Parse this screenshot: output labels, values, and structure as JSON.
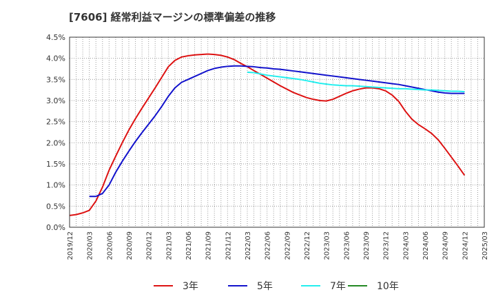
{
  "title": "[7606]  経常利益マージンの標準偏差の推移",
  "chart_data": {
    "type": "line",
    "title": "[7606]  経常利益マージンの標準偏差の推移",
    "y_ticks": [
      "0.0%",
      "0.5%",
      "1.0%",
      "1.5%",
      "2.0%",
      "2.5%",
      "3.0%",
      "3.5%",
      "4.0%",
      "4.5%"
    ],
    "ylim": [
      0,
      4.5
    ],
    "x_ticks": [
      "2019/12",
      "2020/03",
      "2020/06",
      "2020/09",
      "2020/12",
      "2021/03",
      "2021/06",
      "2021/09",
      "2021/12",
      "2022/03",
      "2022/06",
      "2022/09",
      "2022/12",
      "2023/03",
      "2023/06",
      "2023/09",
      "2023/12",
      "2024/03",
      "2024/06",
      "2024/09",
      "2024/12",
      "2025/03"
    ],
    "grid": true,
    "legend_position": "bottom",
    "series": [
      {
        "name": "3年",
        "color": "#dd1111",
        "points": [
          [
            "2019/12",
            0.28
          ],
          [
            "2020/01",
            0.3
          ],
          [
            "2020/02",
            0.34
          ],
          [
            "2020/03",
            0.4
          ],
          [
            "2020/04",
            0.62
          ],
          [
            "2020/05",
            0.95
          ],
          [
            "2020/06",
            1.35
          ],
          [
            "2020/07",
            1.68
          ],
          [
            "2020/08",
            2.0
          ],
          [
            "2020/09",
            2.3
          ],
          [
            "2020/10",
            2.57
          ],
          [
            "2020/11",
            2.82
          ],
          [
            "2020/12",
            3.06
          ],
          [
            "2021/01",
            3.3
          ],
          [
            "2021/02",
            3.55
          ],
          [
            "2021/03",
            3.8
          ],
          [
            "2021/04",
            3.95
          ],
          [
            "2021/05",
            4.03
          ],
          [
            "2021/06",
            4.06
          ],
          [
            "2021/07",
            4.08
          ],
          [
            "2021/08",
            4.09
          ],
          [
            "2021/09",
            4.1
          ],
          [
            "2021/10",
            4.09
          ],
          [
            "2021/11",
            4.07
          ],
          [
            "2021/12",
            4.03
          ],
          [
            "2022/01",
            3.97
          ],
          [
            "2022/02",
            3.88
          ],
          [
            "2022/03",
            3.8
          ],
          [
            "2022/04",
            3.71
          ],
          [
            "2022/05",
            3.62
          ],
          [
            "2022/06",
            3.53
          ],
          [
            "2022/07",
            3.44
          ],
          [
            "2022/08",
            3.35
          ],
          [
            "2022/09",
            3.27
          ],
          [
            "2022/10",
            3.19
          ],
          [
            "2022/11",
            3.13
          ],
          [
            "2022/12",
            3.07
          ],
          [
            "2023/01",
            3.03
          ],
          [
            "2023/02",
            3.0
          ],
          [
            "2023/03",
            2.99
          ],
          [
            "2023/04",
            3.03
          ],
          [
            "2023/05",
            3.1
          ],
          [
            "2023/06",
            3.17
          ],
          [
            "2023/07",
            3.23
          ],
          [
            "2023/08",
            3.27
          ],
          [
            "2023/09",
            3.3
          ],
          [
            "2023/10",
            3.3
          ],
          [
            "2023/11",
            3.28
          ],
          [
            "2023/12",
            3.23
          ],
          [
            "2024/01",
            3.13
          ],
          [
            "2024/02",
            2.98
          ],
          [
            "2024/03",
            2.75
          ],
          [
            "2024/04",
            2.56
          ],
          [
            "2024/05",
            2.43
          ],
          [
            "2024/06",
            2.33
          ],
          [
            "2024/07",
            2.22
          ],
          [
            "2024/08",
            2.07
          ],
          [
            "2024/09",
            1.87
          ],
          [
            "2024/10",
            1.66
          ],
          [
            "2024/11",
            1.45
          ],
          [
            "2024/12",
            1.23
          ]
        ]
      },
      {
        "name": "5年",
        "color": "#1111cc",
        "points": [
          [
            "2020/03",
            0.73
          ],
          [
            "2020/04",
            0.73
          ],
          [
            "2020/05",
            0.8
          ],
          [
            "2020/06",
            1.0
          ],
          [
            "2020/07",
            1.3
          ],
          [
            "2020/08",
            1.56
          ],
          [
            "2020/09",
            1.8
          ],
          [
            "2020/10",
            2.03
          ],
          [
            "2020/11",
            2.24
          ],
          [
            "2020/12",
            2.44
          ],
          [
            "2021/01",
            2.64
          ],
          [
            "2021/02",
            2.86
          ],
          [
            "2021/03",
            3.1
          ],
          [
            "2021/04",
            3.3
          ],
          [
            "2021/05",
            3.43
          ],
          [
            "2021/06",
            3.5
          ],
          [
            "2021/07",
            3.57
          ],
          [
            "2021/08",
            3.64
          ],
          [
            "2021/09",
            3.71
          ],
          [
            "2021/10",
            3.76
          ],
          [
            "2021/11",
            3.79
          ],
          [
            "2021/12",
            3.81
          ],
          [
            "2022/01",
            3.82
          ],
          [
            "2022/02",
            3.82
          ],
          [
            "2022/03",
            3.81
          ],
          [
            "2022/04",
            3.8
          ],
          [
            "2022/05",
            3.78
          ],
          [
            "2022/06",
            3.77
          ],
          [
            "2022/07",
            3.75
          ],
          [
            "2022/08",
            3.74
          ],
          [
            "2022/09",
            3.72
          ],
          [
            "2022/10",
            3.7
          ],
          [
            "2022/11",
            3.68
          ],
          [
            "2022/12",
            3.66
          ],
          [
            "2023/01",
            3.64
          ],
          [
            "2023/02",
            3.62
          ],
          [
            "2023/03",
            3.6
          ],
          [
            "2023/04",
            3.58
          ],
          [
            "2023/05",
            3.56
          ],
          [
            "2023/06",
            3.54
          ],
          [
            "2023/07",
            3.52
          ],
          [
            "2023/08",
            3.5
          ],
          [
            "2023/09",
            3.48
          ],
          [
            "2023/10",
            3.46
          ],
          [
            "2023/11",
            3.44
          ],
          [
            "2023/12",
            3.42
          ],
          [
            "2024/01",
            3.4
          ],
          [
            "2024/02",
            3.38
          ],
          [
            "2024/03",
            3.35
          ],
          [
            "2024/04",
            3.32
          ],
          [
            "2024/05",
            3.29
          ],
          [
            "2024/06",
            3.26
          ],
          [
            "2024/07",
            3.23
          ],
          [
            "2024/08",
            3.2
          ],
          [
            "2024/09",
            3.18
          ],
          [
            "2024/10",
            3.17
          ],
          [
            "2024/11",
            3.17
          ],
          [
            "2024/12",
            3.17
          ]
        ]
      },
      {
        "name": "7年",
        "color": "#22eeee",
        "points": [
          [
            "2022/03",
            3.67
          ],
          [
            "2022/04",
            3.66
          ],
          [
            "2022/05",
            3.63
          ],
          [
            "2022/06",
            3.6
          ],
          [
            "2022/07",
            3.58
          ],
          [
            "2022/08",
            3.56
          ],
          [
            "2022/09",
            3.54
          ],
          [
            "2022/10",
            3.52
          ],
          [
            "2022/11",
            3.5
          ],
          [
            "2022/12",
            3.47
          ],
          [
            "2023/01",
            3.44
          ],
          [
            "2023/02",
            3.41
          ],
          [
            "2023/03",
            3.39
          ],
          [
            "2023/04",
            3.37
          ],
          [
            "2023/05",
            3.36
          ],
          [
            "2023/06",
            3.35
          ],
          [
            "2023/07",
            3.35
          ],
          [
            "2023/08",
            3.34
          ],
          [
            "2023/09",
            3.33
          ],
          [
            "2023/10",
            3.32
          ],
          [
            "2023/11",
            3.31
          ],
          [
            "2023/12",
            3.3
          ],
          [
            "2024/01",
            3.29
          ],
          [
            "2024/02",
            3.28
          ],
          [
            "2024/03",
            3.28
          ],
          [
            "2024/04",
            3.27
          ],
          [
            "2024/05",
            3.26
          ],
          [
            "2024/06",
            3.25
          ],
          [
            "2024/07",
            3.25
          ],
          [
            "2024/08",
            3.24
          ],
          [
            "2024/09",
            3.23
          ],
          [
            "2024/10",
            3.22
          ],
          [
            "2024/11",
            3.22
          ],
          [
            "2024/12",
            3.21
          ]
        ]
      },
      {
        "name": "10年",
        "color": "#228822",
        "points": []
      }
    ]
  }
}
